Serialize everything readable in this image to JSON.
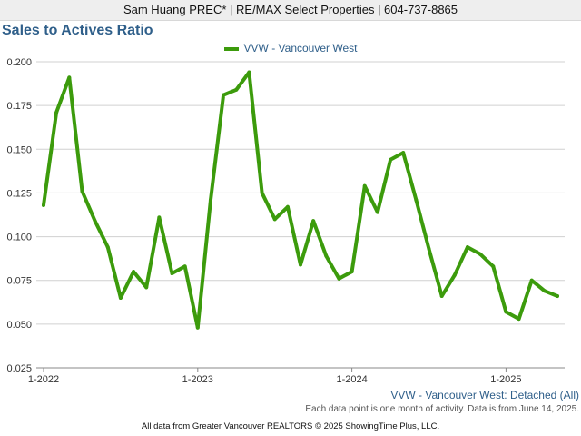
{
  "header": {
    "text": "Sam Huang PREC* | RE/MAX Select Properties | 604-737-8865"
  },
  "colors": {
    "series": "#3c9b0c",
    "title": "#2f5f8a",
    "grid": "#d0d0d0",
    "axis": "#888888"
  },
  "chart_data": {
    "type": "line",
    "title": "Sales to Actives Ratio",
    "series_name": "VVW - Vancouver West",
    "caption": "VVW - Vancouver West: Detached (All)",
    "note": "Each data point is one month of activity. Data is from June 14, 2025.",
    "footer": "All data from Greater Vancouver REALTORS © 2025 ShowingTime Plus, LLC.",
    "legend_position": "top-center",
    "grid": true,
    "ylim": [
      0.025,
      0.2
    ],
    "yticks": [
      "0.200",
      "0.175",
      "0.150",
      "0.125",
      "0.100",
      "0.075",
      "0.050",
      "0.025"
    ],
    "ytick_values": [
      0.2,
      0.175,
      0.15,
      0.125,
      0.1,
      0.075,
      0.05,
      0.025
    ],
    "xticks": [
      "1-2022",
      "1-2023",
      "1-2024",
      "1-2025"
    ],
    "xtick_dates": [
      "2022-01",
      "2023-01",
      "2024-01",
      "2025-01"
    ],
    "x": [
      "2022-01",
      "2022-02",
      "2022-03",
      "2022-04",
      "2022-05",
      "2022-06",
      "2022-07",
      "2022-08",
      "2022-09",
      "2022-10",
      "2022-11",
      "2022-12",
      "2023-01",
      "2023-02",
      "2023-03",
      "2023-04",
      "2023-05",
      "2023-06",
      "2023-07",
      "2023-08",
      "2023-09",
      "2023-10",
      "2023-11",
      "2023-12",
      "2024-01",
      "2024-02",
      "2024-03",
      "2024-04",
      "2024-05",
      "2024-06",
      "2024-07",
      "2024-08",
      "2024-09",
      "2024-10",
      "2024-11",
      "2024-12",
      "2025-01",
      "2025-02",
      "2025-03",
      "2025-04",
      "2025-05"
    ],
    "series": [
      {
        "name": "VVW - Vancouver West",
        "values": [
          0.118,
          0.171,
          0.191,
          0.126,
          0.109,
          0.094,
          0.065,
          0.08,
          0.071,
          0.111,
          0.079,
          0.083,
          0.048,
          0.121,
          0.181,
          0.184,
          0.194,
          0.125,
          0.11,
          0.117,
          0.084,
          0.109,
          0.089,
          0.076,
          0.08,
          0.129,
          0.114,
          0.144,
          0.148,
          0.121,
          0.093,
          0.066,
          0.078,
          0.094,
          0.09,
          0.083,
          0.057,
          0.053,
          0.075,
          0.069,
          0.066
        ]
      }
    ]
  }
}
